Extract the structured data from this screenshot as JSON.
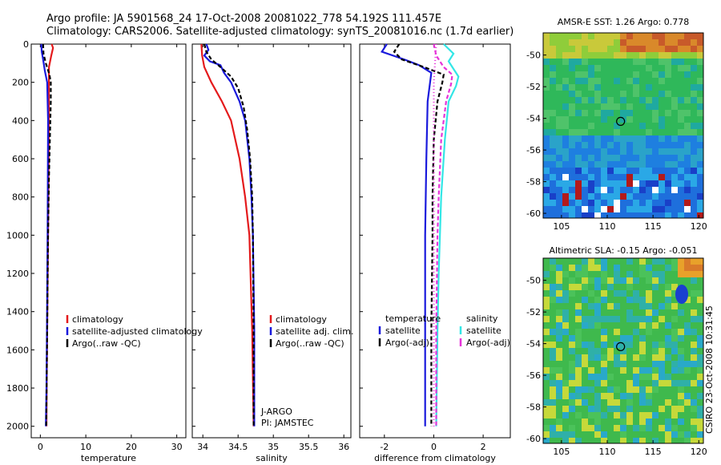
{
  "header": {
    "line1": "Argo profile: JA 5901568_24 17-Oct-2008 20081022_778 54.192S 111.457E",
    "line2": "Climatology: CARS2006. Satellite-adjusted climatology: synTS_20081016.nc (1.7d earlier)"
  },
  "colors": {
    "red": "#e41a1c",
    "blue": "#1a1adc",
    "black": "#000000",
    "cyan": "#33e6e6",
    "magenta": "#e633d9"
  },
  "chart_data": [
    {
      "id": "temperature",
      "type": "line",
      "xlabel": "temperature",
      "xlim": [
        -2,
        32
      ],
      "ylim": [
        0,
        2060
      ],
      "yreversed": true,
      "xticks": [
        0,
        10,
        20,
        30
      ],
      "yticks": [
        0,
        200,
        400,
        600,
        800,
        1000,
        1200,
        1400,
        1600,
        1800,
        2000
      ],
      "legend": [
        "climatology",
        "satellite-adjusted climatology",
        "Argo(..raw -QC)"
      ],
      "series": [
        {
          "name": "climatology",
          "color": "red",
          "dash": "",
          "points": [
            [
              2.5,
              0
            ],
            [
              2.8,
              20
            ],
            [
              2.4,
              60
            ],
            [
              1.9,
              120
            ],
            [
              1.9,
              200
            ],
            [
              1.85,
              400
            ],
            [
              1.8,
              700
            ],
            [
              1.7,
              1000
            ],
            [
              1.5,
              1500
            ],
            [
              1.4,
              1800
            ],
            [
              1.35,
              2000
            ]
          ]
        },
        {
          "name": "satellite-adjusted climatology",
          "color": "blue",
          "dash": "",
          "points": [
            [
              0.2,
              0
            ],
            [
              0.3,
              40
            ],
            [
              0.6,
              80
            ],
            [
              1.0,
              140
            ],
            [
              1.5,
              200
            ],
            [
              1.7,
              400
            ],
            [
              1.65,
              700
            ],
            [
              1.6,
              1000
            ],
            [
              1.45,
              1500
            ],
            [
              1.35,
              1800
            ],
            [
              1.2,
              2000
            ]
          ]
        },
        {
          "name": "Argo(..raw -QC)",
          "color": "black",
          "dash": "5,3",
          "points": [
            [
              0.6,
              0
            ],
            [
              0.7,
              50
            ],
            [
              1.2,
              100
            ],
            [
              2.0,
              160
            ],
            [
              2.3,
              200
            ],
            [
              2.3,
              300
            ],
            [
              2.2,
              400
            ],
            [
              1.9,
              700
            ],
            [
              1.7,
              1000
            ],
            [
              1.5,
              1500
            ],
            [
              1.3,
              2000
            ]
          ]
        }
      ]
    },
    {
      "id": "salinity",
      "type": "line",
      "xlabel": "salinity",
      "xlim": [
        33.85,
        36.1
      ],
      "ylim": [
        0,
        2060
      ],
      "yreversed": true,
      "xticks": [
        34,
        34.5,
        35,
        35.5,
        36
      ],
      "legend": [
        "climatology",
        "satellite adj. clim.",
        "Argo(..raw -QC)"
      ],
      "annotations": [
        "J-ARGO",
        "PI: JAMSTEC"
      ],
      "series": [
        {
          "name": "climatology",
          "color": "red",
          "dash": "",
          "points": [
            [
              33.98,
              0
            ],
            [
              33.99,
              60
            ],
            [
              34.02,
              120
            ],
            [
              34.12,
              200
            ],
            [
              34.27,
              300
            ],
            [
              34.4,
              400
            ],
            [
              34.52,
              600
            ],
            [
              34.6,
              800
            ],
            [
              34.66,
              1000
            ],
            [
              34.7,
              1500
            ],
            [
              34.72,
              2000
            ]
          ]
        },
        {
          "name": "satellite adj. clim.",
          "color": "blue",
          "dash": "",
          "points": [
            [
              34.05,
              0
            ],
            [
              34.08,
              30
            ],
            [
              34.02,
              60
            ],
            [
              34.1,
              90
            ],
            [
              34.25,
              110
            ],
            [
              34.3,
              150
            ],
            [
              34.4,
              200
            ],
            [
              34.52,
              300
            ],
            [
              34.6,
              400
            ],
            [
              34.66,
              600
            ],
            [
              34.69,
              800
            ],
            [
              34.71,
              1000
            ],
            [
              34.73,
              1500
            ],
            [
              34.73,
              2000
            ]
          ]
        },
        {
          "name": "Argo(..raw -QC)",
          "color": "black",
          "dash": "5,3",
          "points": [
            [
              34.02,
              0
            ],
            [
              34.05,
              40
            ],
            [
              34.12,
              80
            ],
            [
              34.25,
              120
            ],
            [
              34.4,
              170
            ],
            [
              34.5,
              230
            ],
            [
              34.58,
              330
            ],
            [
              34.63,
              450
            ],
            [
              34.67,
              600
            ],
            [
              34.7,
              800
            ],
            [
              34.71,
              1000
            ],
            [
              34.72,
              1500
            ],
            [
              34.72,
              2000
            ]
          ]
        }
      ]
    },
    {
      "id": "difference",
      "type": "line",
      "xlabel": "difference from climatology",
      "xlim": [
        -3.0,
        3.1
      ],
      "ylim": [
        0,
        2060
      ],
      "yreversed": true,
      "xticks": [
        -2,
        0,
        2
      ],
      "legend_headers": [
        "temperature",
        "salinity"
      ],
      "legend": [
        "satellite",
        "Argo(-adj)",
        "satellite",
        "Argo(-adj)"
      ],
      "series": [
        {
          "name": "temperature satellite",
          "color": "blue",
          "dash": "",
          "points": [
            [
              -1.9,
              0
            ],
            [
              -2.1,
              40
            ],
            [
              -1.2,
              80
            ],
            [
              -0.6,
              110
            ],
            [
              -0.1,
              150
            ],
            [
              -0.25,
              300
            ],
            [
              -0.3,
              600
            ],
            [
              -0.35,
              1000
            ],
            [
              -0.35,
              1500
            ],
            [
              -0.35,
              2000
            ]
          ]
        },
        {
          "name": "temperature Argo(-adj)",
          "color": "black",
          "dash": "5,3",
          "points": [
            [
              -1.4,
              0
            ],
            [
              -1.6,
              40
            ],
            [
              -1.3,
              80
            ],
            [
              -0.4,
              120
            ],
            [
              0.4,
              160
            ],
            [
              0.35,
              200
            ],
            [
              0.15,
              300
            ],
            [
              0.0,
              500
            ],
            [
              -0.05,
              800
            ],
            [
              -0.05,
              1000
            ],
            [
              -0.1,
              1500
            ],
            [
              -0.1,
              2000
            ]
          ]
        },
        {
          "name": "salinity satellite",
          "color": "cyan",
          "dash": "",
          "points": [
            [
              0.4,
              0
            ],
            [
              0.8,
              50
            ],
            [
              0.6,
              90
            ],
            [
              0.8,
              130
            ],
            [
              1.0,
              170
            ],
            [
              0.9,
              220
            ],
            [
              0.6,
              300
            ],
            [
              0.45,
              500
            ],
            [
              0.3,
              800
            ],
            [
              0.2,
              1200
            ],
            [
              0.15,
              1500
            ],
            [
              0.1,
              2000
            ]
          ]
        },
        {
          "name": "salinity Argo(-adj)",
          "color": "magenta",
          "dash": "5,3",
          "points": [
            [
              0.0,
              0
            ],
            [
              0.1,
              60
            ],
            [
              0.4,
              120
            ],
            [
              0.75,
              160
            ],
            [
              0.7,
              210
            ],
            [
              0.5,
              300
            ],
            [
              0.3,
              500
            ],
            [
              0.2,
              800
            ],
            [
              0.15,
              1000
            ],
            [
              0.1,
              1500
            ],
            [
              0.1,
              2000
            ]
          ]
        },
        {
          "name": "salinity Argo(-adj) dotted",
          "color": "magenta",
          "dash": "1,3",
          "points": [
            [
              0.1,
              0
            ],
            [
              0.05,
              100
            ],
            [
              0.0,
              200
            ],
            [
              0.0,
              2000
            ]
          ]
        }
      ]
    },
    {
      "id": "sst-map",
      "type": "heatmap",
      "title": "AMSR-E SST: 1.26 Argo: 0.778",
      "xlim": [
        103,
        120.5
      ],
      "ylim": [
        -60.3,
        -48.6
      ],
      "xticks": [
        105,
        110,
        115,
        120
      ],
      "yticks": [
        -50,
        -52,
        -54,
        -56,
        -58,
        -60
      ],
      "argo_position": [
        111.457,
        -54.192
      ]
    },
    {
      "id": "sla-map",
      "type": "heatmap",
      "title": "Altimetric SLA: -0.15 Argo: -0.051",
      "xlim": [
        103,
        120.5
      ],
      "ylim": [
        -60.3,
        -48.6
      ],
      "xticks": [
        105,
        110,
        115,
        120
      ],
      "yticks": [
        -50,
        -52,
        -54,
        -56,
        -58,
        -60
      ],
      "argo_position": [
        111.457,
        -54.192
      ],
      "side_label": "CSIRO 23-Oct-2008 10:31:45"
    }
  ]
}
